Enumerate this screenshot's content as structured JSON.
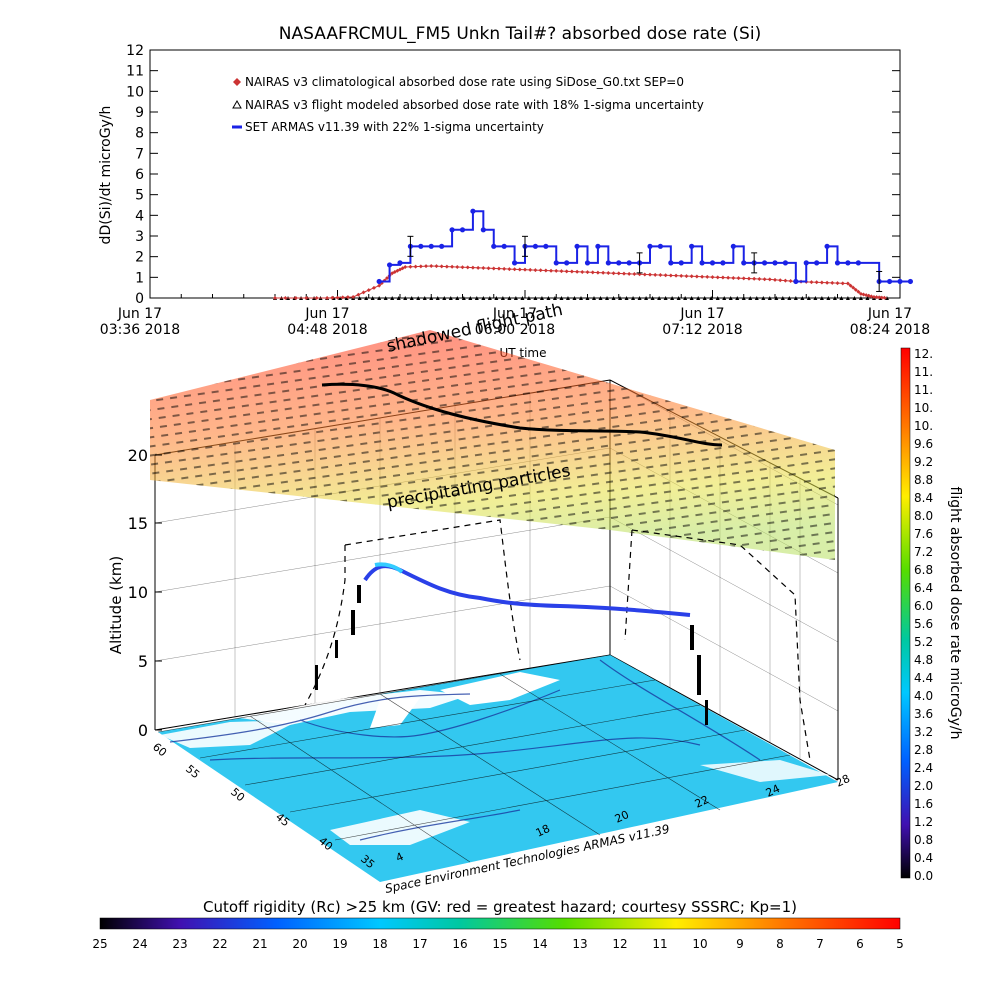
{
  "title": "NASAAFRCMUL_FM5 Unkn Tail#? absorbed dose rate (Si)",
  "colors": {
    "climatological": "#cc3333",
    "modeled": "#000000",
    "armas": "#1a22e6"
  },
  "chart_data": [
    {
      "type": "scatter",
      "ylabel": "dD(Si)/dt microGy/h",
      "xlabel": "UT time",
      "ylim": [
        0,
        12
      ],
      "yticks": [
        "0",
        "1",
        "2",
        "3",
        "4",
        "5",
        "6",
        "7",
        "8",
        "9",
        "10",
        "11",
        "12"
      ],
      "xticks": [
        {
          "l1": "Jun 17",
          "l2": "03:36 2018"
        },
        {
          "l1": "Jun 17",
          "l2": "04:48 2018"
        },
        {
          "l1": "Jun 17",
          "l2": "06:00 2018"
        },
        {
          "l1": "Jun 17",
          "l2": "07:12 2018"
        },
        {
          "l1": "Jun 17",
          "l2": "08:24 2018"
        }
      ],
      "legend": [
        "NAIRAS v3 climatological absorbed dose rate using SiDose_G0.txt SEP=0",
        "NAIRAS v3 flight modeled absorbed dose rate with 18% 1-sigma uncertainty",
        "SET ARMAS v11.39 with 22% 1-sigma uncertainty"
      ],
      "legend_position": "top-left",
      "series": [
        {
          "name": "NAIRAS v3 climatological absorbed dose rate using SiDose_G0.txt SEP=0",
          "x_minutes": [
            0,
            20,
            30,
            40,
            45,
            50,
            60,
            70,
            80,
            90,
            100,
            110,
            120,
            130,
            140,
            150,
            160,
            170,
            180,
            190,
            200,
            210,
            220,
            225,
            230,
            235
          ],
          "values": [
            0,
            0,
            0.05,
            0.6,
            1.2,
            1.5,
            1.55,
            1.5,
            1.45,
            1.4,
            1.35,
            1.3,
            1.25,
            1.2,
            1.15,
            1.1,
            1.05,
            1.0,
            0.95,
            0.9,
            0.8,
            0.75,
            0.7,
            0.2,
            0.05,
            0
          ]
        },
        {
          "name": "NAIRAS v3 flight modeled absorbed dose rate with 18% 1-sigma uncertainty",
          "x_minutes": [
            0,
            235
          ],
          "values": [
            0,
            0
          ]
        },
        {
          "name": "SET ARMAS v11.39 with 22% 1-sigma uncertainty",
          "x_minutes": [
            40,
            44,
            48,
            52,
            56,
            60,
            64,
            68,
            72,
            76,
            80,
            84,
            88,
            92,
            96,
            100,
            104,
            108,
            112,
            116,
            120,
            124,
            128,
            132,
            136,
            140,
            144,
            148,
            152,
            156,
            160,
            164,
            168,
            172,
            176,
            180,
            184,
            188,
            192,
            196,
            200,
            204,
            208,
            212,
            216,
            220,
            224,
            232,
            236,
            240,
            244
          ],
          "values": [
            0.8,
            1.6,
            1.7,
            2.5,
            2.5,
            2.5,
            2.5,
            3.3,
            3.3,
            4.2,
            3.3,
            2.5,
            2.5,
            1.7,
            2.5,
            2.5,
            2.5,
            1.7,
            1.7,
            2.5,
            1.7,
            2.5,
            1.7,
            1.7,
            1.7,
            1.7,
            2.5,
            2.5,
            1.7,
            1.7,
            2.5,
            1.7,
            1.7,
            1.7,
            2.5,
            1.7,
            1.7,
            1.7,
            1.7,
            1.7,
            0.8,
            1.7,
            1.7,
            2.5,
            1.7,
            1.7,
            1.7,
            0.8,
            0.8,
            0.8,
            0.8
          ]
        }
      ]
    },
    {
      "type": "heatmap",
      "ylabel": "Altitude (km)",
      "zticks": [
        "0",
        "5",
        "10",
        "15",
        "20"
      ],
      "lat_ticks": [
        "60",
        "55",
        "50",
        "45",
        "40",
        "35"
      ],
      "lon_ticks": [
        "4",
        "18",
        "20",
        "22",
        "24",
        "28"
      ],
      "annotations": [
        "shadowed flight path",
        "precipitating particles",
        "Space Environment Technologies ARMAS v11.39"
      ],
      "colorbar_right": {
        "label": "flight absorbed dose rate microGy/h",
        "ticks": [
          "12.",
          "11.",
          "11.",
          "10.",
          "10.",
          "9.6",
          "9.2",
          "8.8",
          "8.4",
          "8.0",
          "7.6",
          "7.2",
          "6.8",
          "6.4",
          "6.0",
          "5.6",
          "5.2",
          "4.8",
          "4.4",
          "4.0",
          "3.6",
          "3.2",
          "2.8",
          "2.4",
          "2.0",
          "1.6",
          "1.2",
          "0.8",
          "0.4",
          "0.0"
        ]
      },
      "colorbar_bottom": {
        "label": "Cutoff rigidity (Rc) >25 km (GV: red = greatest hazard; courtesy SSSRC; Kp=1)",
        "ticks": [
          "25",
          "24",
          "23",
          "22",
          "21",
          "20",
          "19",
          "18",
          "17",
          "16",
          "15",
          "14",
          "13",
          "12",
          "11",
          "10",
          "9",
          "8",
          "7",
          "6",
          "5"
        ]
      }
    }
  ]
}
